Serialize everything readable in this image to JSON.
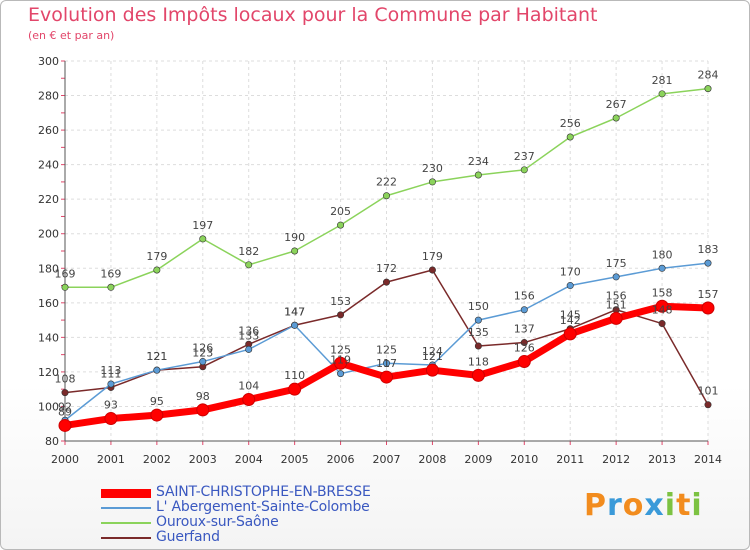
{
  "header": {
    "title": "Evolution des Impôts locaux pour la Commune par Habitant",
    "subtitle": "(en € et par an)"
  },
  "logo": {
    "text": "Proxiti"
  },
  "chart_data": {
    "type": "line",
    "title": "Evolution des Impôts locaux pour la Commune par Habitant",
    "subtitle": "(en € et par an)",
    "x": [
      2000,
      2001,
      2002,
      2003,
      2004,
      2005,
      2006,
      2007,
      2008,
      2009,
      2010,
      2011,
      2012,
      2013,
      2014
    ],
    "ylim": [
      80,
      300
    ],
    "yticks": [
      80,
      100,
      120,
      140,
      160,
      180,
      200,
      220,
      240,
      260,
      280,
      300
    ],
    "grid": true,
    "legend_position": "bottom",
    "series": [
      {
        "name": "SAINT-CHRISTOPHE-EN-BRESSE",
        "color": "#ff0000",
        "values": [
          89,
          93,
          95,
          98,
          104,
          110,
          125,
          117,
          121,
          118,
          126,
          142,
          151,
          158,
          157
        ]
      },
      {
        "name": "L' Abergement-Sainte-Colombe",
        "color": "#5b9bd5",
        "values": [
          92,
          113,
          121,
          126,
          133,
          147,
          119,
          125,
          124,
          150,
          156,
          170,
          175,
          180,
          183
        ]
      },
      {
        "name": "Ouroux-sur-Saône",
        "color": "#8bd35b",
        "values": [
          169,
          169,
          179,
          197,
          182,
          190,
          205,
          222,
          230,
          234,
          237,
          256,
          267,
          281,
          284
        ]
      },
      {
        "name": "Guerfand",
        "color": "#7a2a2a",
        "values": [
          108,
          111,
          121,
          123,
          136,
          147,
          153,
          172,
          179,
          135,
          137,
          145,
          156,
          148,
          101
        ]
      }
    ]
  }
}
